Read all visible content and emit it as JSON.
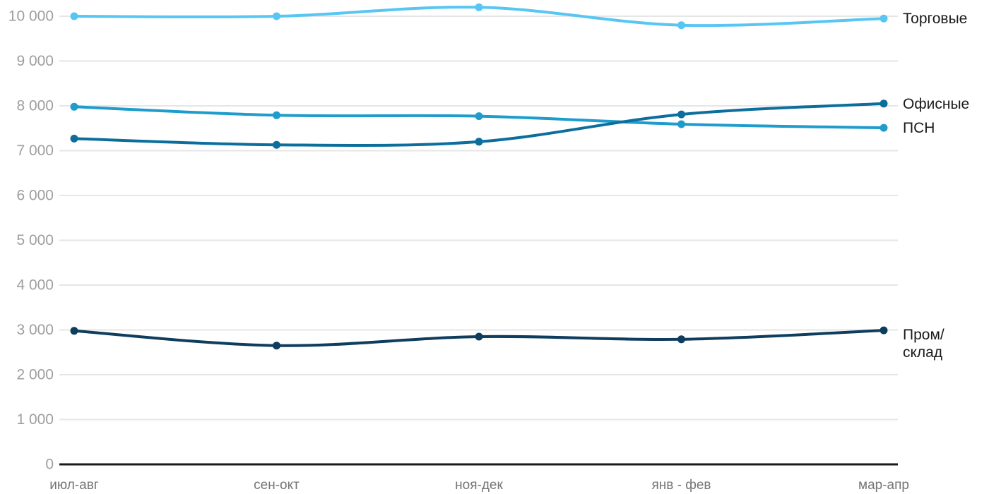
{
  "chart_data": {
    "type": "line",
    "title": "",
    "xlabel": "",
    "ylabel": "",
    "categories": [
      "июл-авг",
      "сен-окт",
      "ноя-дек",
      "янв - фев",
      "мар-апр"
    ],
    "series": [
      {
        "name": "Торговые",
        "values": [
          10000,
          10000,
          10200,
          9800,
          9950
        ],
        "color": "#58C6F2",
        "label_lines": [
          "Торговые"
        ]
      },
      {
        "name": "ПСН",
        "values": [
          7980,
          7790,
          7770,
          7590,
          7510
        ],
        "color": "#1E9CCC",
        "label_lines": [
          "ПСН"
        ]
      },
      {
        "name": "Офисные",
        "values": [
          7270,
          7130,
          7200,
          7810,
          8050
        ],
        "color": "#0C6E9C",
        "label_lines": [
          "Офисные"
        ]
      },
      {
        "name": "Пром/склад",
        "values": [
          2980,
          2650,
          2850,
          2790,
          2990
        ],
        "color": "#0F3D5E",
        "label_lines": [
          "Пром/",
          "склад"
        ]
      }
    ],
    "y_axis": {
      "min": 0,
      "max": 10000,
      "tick_interval": 1000,
      "tick_labels": [
        "0",
        "1 000",
        "2 000",
        "3 000",
        "4 000",
        "5 000",
        "6 000",
        "7 000",
        "8 000",
        "9 000",
        "10 000"
      ]
    },
    "grid": true,
    "legend_position": "right-end-labels",
    "colors": {
      "grid_line": "#E6E6E6",
      "axis_line": "#1A1A1A",
      "y_tick_label": "#9E9E9E",
      "x_tick_label": "#757575",
      "series_label": "#1A1A1A",
      "background": "#FFFFFF"
    }
  }
}
